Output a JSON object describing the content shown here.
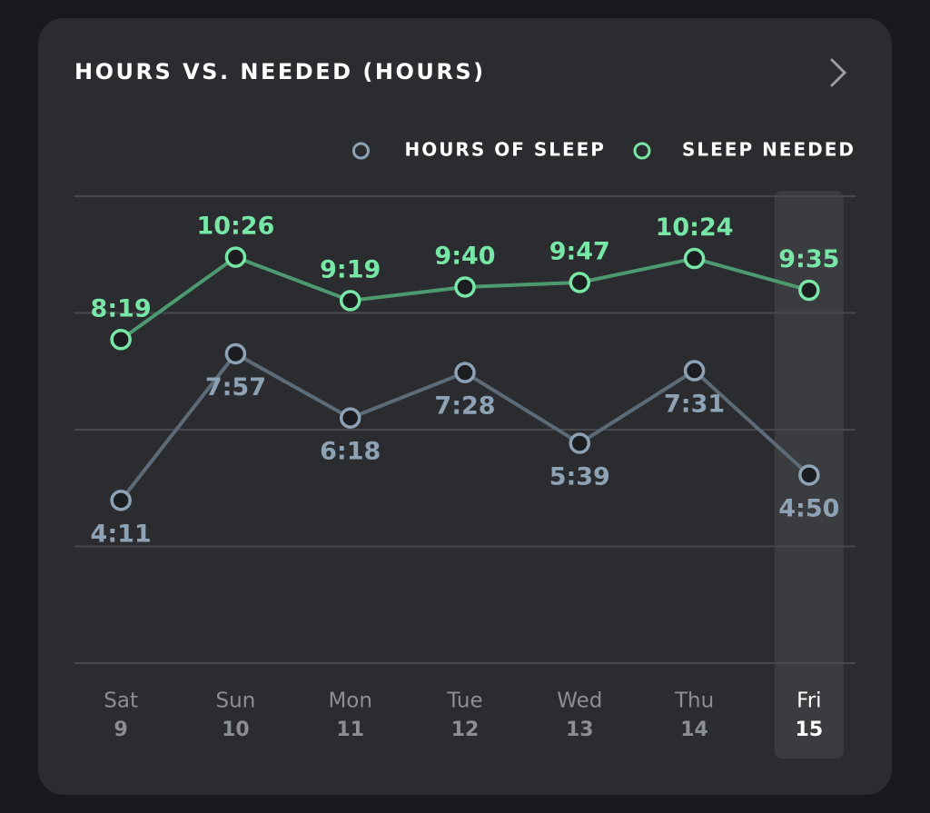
{
  "chart_data": {
    "type": "line",
    "title": "HOURS VS. NEEDED (HOURS)",
    "categories": [
      "Sat",
      "Sun",
      "Mon",
      "Tue",
      "Wed",
      "Thu",
      "Fri"
    ],
    "dates": [
      "9",
      "10",
      "11",
      "12",
      "13",
      "14",
      "15"
    ],
    "selected": 6,
    "series": [
      {
        "name": "HOURS OF SLEEP",
        "color": "#8ea2b6",
        "line_color": "#5d6b78",
        "values": [
          4.1833,
          7.95,
          6.3,
          7.4667,
          5.65,
          7.5167,
          4.8333
        ],
        "value_labels": [
          "4:11",
          "7:57",
          "6:18",
          "7:28",
          "5:39",
          "7:31",
          "4:50"
        ]
      },
      {
        "name": "SLEEP NEEDED",
        "color": "#78e6a6",
        "line_color": "#4d9a70",
        "values": [
          8.3167,
          10.4333,
          9.3167,
          9.6667,
          9.7833,
          10.4,
          9.5833
        ],
        "value_labels": [
          "8:19",
          "10:26",
          "9:19",
          "9:40",
          "9:47",
          "10:24",
          "9:35"
        ]
      }
    ],
    "ylim": [
      0,
      12
    ],
    "yticks": [
      0,
      3,
      6,
      9,
      12
    ],
    "grid": true
  }
}
